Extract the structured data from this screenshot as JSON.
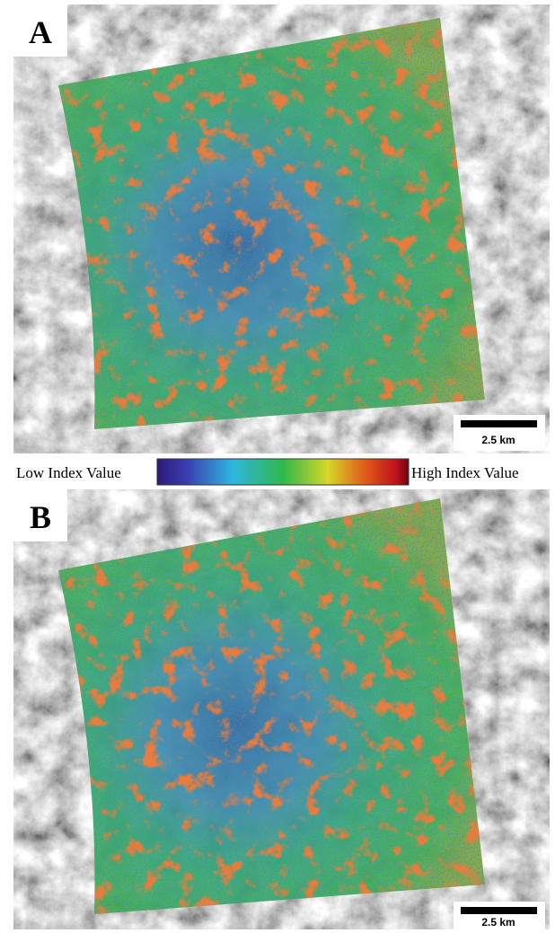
{
  "panels": [
    {
      "label": "A",
      "scale_bar": "2.5 km"
    },
    {
      "label": "B",
      "scale_bar": "2.5 km"
    }
  ],
  "colorbar": {
    "low_label": "Low Index Value",
    "high_label": "High Index Value"
  }
}
